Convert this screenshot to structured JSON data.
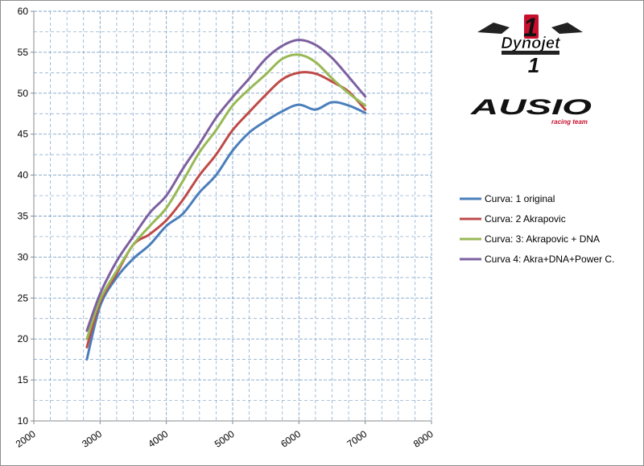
{
  "chart_data": {
    "type": "line",
    "xlim": [
      2000,
      8000
    ],
    "ylim": [
      10,
      60
    ],
    "x_ticks": [
      2000,
      3000,
      4000,
      5000,
      6000,
      7000,
      8000
    ],
    "y_ticks": [
      10,
      15,
      20,
      25,
      30,
      35,
      40,
      45,
      50,
      55,
      60
    ],
    "grid": true,
    "legend_position": "right",
    "x": [
      2800,
      3000,
      3250,
      3500,
      3750,
      4000,
      4250,
      4500,
      4750,
      5000,
      5250,
      5500,
      5750,
      6000,
      6250,
      6500,
      6750,
      7000
    ],
    "series": [
      {
        "name": "Curva: 1 original",
        "color": "#4a7ebb",
        "values": [
          17.5,
          24.0,
          27.5,
          29.8,
          31.5,
          33.8,
          35.3,
          37.9,
          40.0,
          43.0,
          45.2,
          46.6,
          47.8,
          48.6,
          48.0,
          48.9,
          48.5,
          47.6
        ]
      },
      {
        "name": "Curva: 2 Akrapovic",
        "color": "#be4b48",
        "values": [
          19.0,
          24.5,
          28.0,
          31.5,
          32.8,
          34.5,
          37.0,
          40.0,
          42.5,
          45.5,
          47.7,
          49.8,
          51.7,
          52.5,
          52.4,
          51.4,
          50.2,
          48.0
        ]
      },
      {
        "name": "Curva: 3: Akrapovic + DNA",
        "color": "#98b954",
        "values": [
          20.0,
          24.8,
          28.3,
          31.5,
          33.8,
          36.0,
          39.3,
          42.8,
          45.5,
          48.5,
          50.5,
          52.3,
          54.2,
          54.7,
          53.8,
          51.8,
          50.0,
          48.5
        ]
      },
      {
        "name": "Curva 4: Akra+DNA+Power C.",
        "color": "#7d60a0",
        "values": [
          21.0,
          25.5,
          29.5,
          32.5,
          35.4,
          37.5,
          40.8,
          43.8,
          47.0,
          49.5,
          51.8,
          54.2,
          55.8,
          56.5,
          55.9,
          54.3,
          52.0,
          49.6
        ]
      }
    ]
  },
  "logos": {
    "dynojet": "Dynojet",
    "ausio": "AUSIO",
    "ausio_tagline": "racing team"
  }
}
